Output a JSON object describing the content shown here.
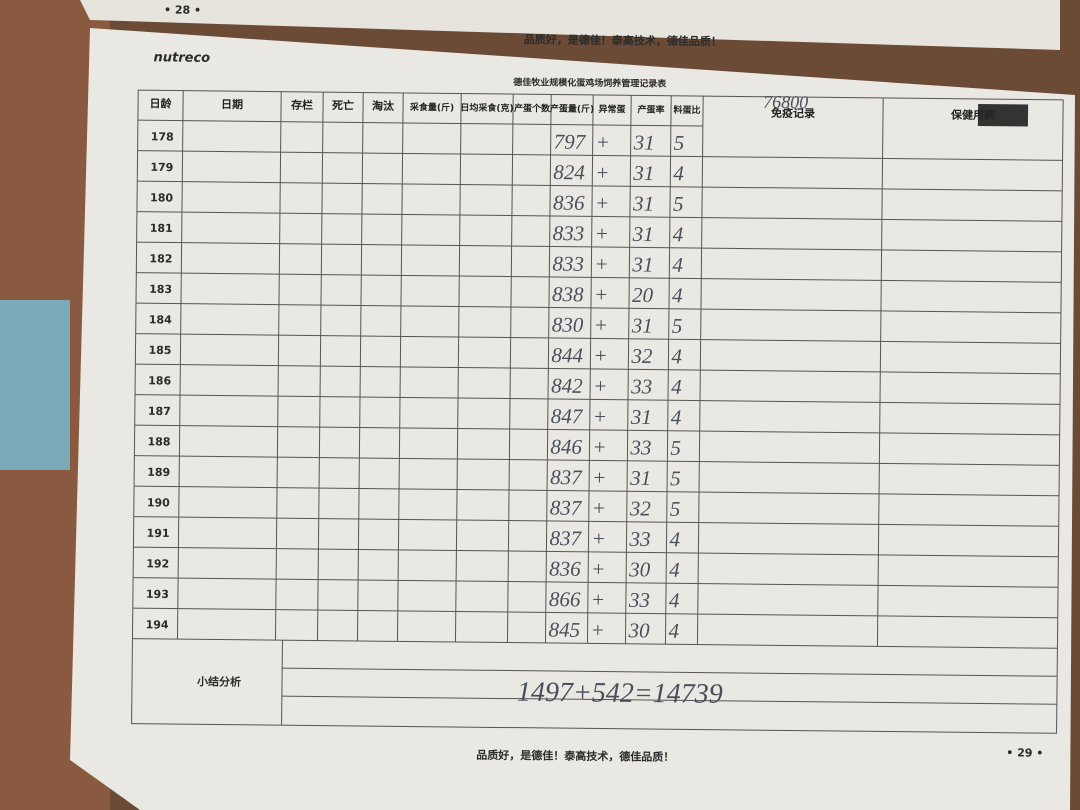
{
  "header": {
    "page_number_top": "• 28 •",
    "slogan_top": "品质好，是德佳！泰高技术，德佳品质！",
    "brand": "nutreco",
    "form_title": "德佳牧业规模化蛋鸡场饲养管理记录表",
    "handwritten_note": "76800"
  },
  "table": {
    "columns": [
      "日龄",
      "日期",
      "存栏",
      "死亡",
      "淘汰",
      "采食量(斤)",
      "日均采食(克)",
      "产蛋个数",
      "产蛋量(斤)",
      "异常蛋",
      "产蛋率",
      "料蛋比",
      "免疫记录",
      "保健用药"
    ],
    "rows": [
      {
        "age": "178",
        "egg_weight": "797",
        "abnormal": "+",
        "rate": "31",
        "ratio": "5"
      },
      {
        "age": "179",
        "egg_weight": "824",
        "abnormal": "+",
        "rate": "31",
        "ratio": "4"
      },
      {
        "age": "180",
        "egg_weight": "836",
        "abnormal": "+",
        "rate": "31",
        "ratio": "5"
      },
      {
        "age": "181",
        "egg_weight": "833",
        "abnormal": "+",
        "rate": "31",
        "ratio": "4"
      },
      {
        "age": "182",
        "egg_weight": "833",
        "abnormal": "+",
        "rate": "31",
        "ratio": "4"
      },
      {
        "age": "183",
        "egg_weight": "838",
        "abnormal": "+",
        "rate": "20",
        "ratio": "4"
      },
      {
        "age": "184",
        "egg_weight": "830",
        "abnormal": "+",
        "rate": "31",
        "ratio": "5"
      },
      {
        "age": "185",
        "egg_weight": "844",
        "abnormal": "+",
        "rate": "32",
        "ratio": "4"
      },
      {
        "age": "186",
        "egg_weight": "842",
        "abnormal": "+",
        "rate": "33",
        "ratio": "4"
      },
      {
        "age": "187",
        "egg_weight": "847",
        "abnormal": "+",
        "rate": "31",
        "ratio": "4"
      },
      {
        "age": "188",
        "egg_weight": "846",
        "abnormal": "+",
        "rate": "33",
        "ratio": "5"
      },
      {
        "age": "189",
        "egg_weight": "837",
        "abnormal": "+",
        "rate": "31",
        "ratio": "5"
      },
      {
        "age": "190",
        "egg_weight": "837",
        "abnormal": "+",
        "rate": "32",
        "ratio": "5"
      },
      {
        "age": "191",
        "egg_weight": "837",
        "abnormal": "+",
        "rate": "33",
        "ratio": "4"
      },
      {
        "age": "192",
        "egg_weight": "836",
        "abnormal": "+",
        "rate": "30",
        "ratio": "4"
      },
      {
        "age": "193",
        "egg_weight": "866",
        "abnormal": "+",
        "rate": "33",
        "ratio": "4"
      },
      {
        "age": "194",
        "egg_weight": "845",
        "abnormal": "+",
        "rate": "30",
        "ratio": "4"
      }
    ]
  },
  "summary": {
    "label": "小结分析",
    "handwritten": "1497+542=14739"
  },
  "footer": {
    "slogan_bottom": "品质好，是德佳！泰高技术，德佳品质！",
    "page_number_bottom": "• 29 •"
  }
}
